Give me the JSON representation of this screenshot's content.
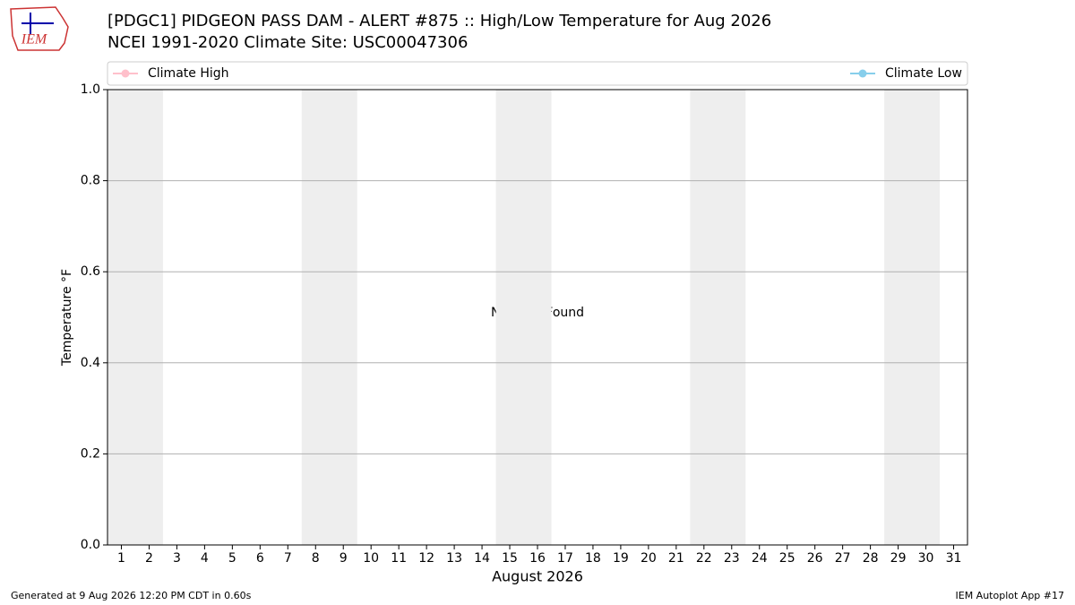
{
  "chart_data": {
    "type": "line",
    "title": "[PDGC1] PIDGEON PASS DAM - ALERT #875 :: High/Low Temperature for Aug 2026",
    "subtitle": "NCEI 1991-2020 Climate Site: USC00047306",
    "logo_text": "IEM",
    "xlabel": "August 2026",
    "ylabel": "Temperature °F",
    "annotation": "No Data Found",
    "footer_left": "Generated at 9 Aug 2026 12:20 PM CDT in 0.60s",
    "footer_right": "IEM Autoplot App #17",
    "series": [
      {
        "name": "Climate High",
        "color": "#ffc0cb",
        "values": []
      },
      {
        "name": "Climate Low",
        "color": "#87ceeb",
        "values": []
      }
    ],
    "xlim": [
      0.5,
      31.5
    ],
    "xticks": [
      1,
      2,
      3,
      4,
      5,
      6,
      7,
      8,
      9,
      10,
      11,
      12,
      13,
      14,
      15,
      16,
      17,
      18,
      19,
      20,
      21,
      22,
      23,
      24,
      25,
      26,
      27,
      28,
      29,
      30,
      31
    ],
    "ylim": [
      0,
      1
    ],
    "yticks": [
      {
        "value": 0,
        "label": "0.0"
      },
      {
        "value": 0.2,
        "label": "0.2"
      },
      {
        "value": 0.4,
        "label": "0.4"
      },
      {
        "value": 0.6,
        "label": "0.6"
      },
      {
        "value": 0.8,
        "label": "0.8"
      },
      {
        "value": 1,
        "label": "1.0"
      }
    ],
    "shaded_spans": [
      [
        0.5,
        2.5
      ],
      [
        7.5,
        9.5
      ],
      [
        14.5,
        16.5
      ],
      [
        21.5,
        23.5
      ],
      [
        28.5,
        30.5
      ]
    ],
    "shade_color": "#eeeeee",
    "grid": true
  }
}
